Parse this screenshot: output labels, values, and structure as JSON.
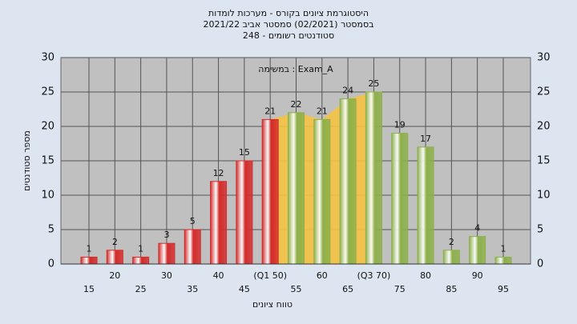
{
  "chart_data": {
    "type": "bar",
    "title": "היסטוגרמת ציונים בקורס - מערכות לומדות",
    "subtitle": "בסמסטר  (02/2021)  סמסטר אביב 2021/22",
    "subtitle2": "סטודנטים רשומים - 248",
    "annotation": "במשימה : Exam_A",
    "x_label": "טווח ציונים",
    "y_label": "מספר סטודנטים",
    "categories": [
      "15",
      "20",
      "25",
      "30",
      "35",
      "40",
      "45",
      "(Q1 50)",
      "55",
      "60",
      "65",
      "(Q3 70)",
      "75",
      "80",
      "85",
      "90",
      "95"
    ],
    "values": [
      1,
      2,
      1,
      3,
      5,
      12,
      15,
      21,
      22,
      21,
      24,
      25,
      19,
      17,
      2,
      4,
      1
    ],
    "colors": [
      "#d42a2a",
      "#d42a2a",
      "#d42a2a",
      "#d42a2a",
      "#d42a2a",
      "#d42a2a",
      "#d42a2a",
      "#d42a2a",
      "#8db04a",
      "#8db04a",
      "#8db04a",
      "#8db04a",
      "#8db04a",
      "#8db04a",
      "#8db04a",
      "#8db04a",
      "#8db04a"
    ],
    "ylim": [
      0,
      30
    ],
    "yticks": [
      0,
      5,
      10,
      15,
      20,
      25,
      30
    ],
    "grid": true
  }
}
